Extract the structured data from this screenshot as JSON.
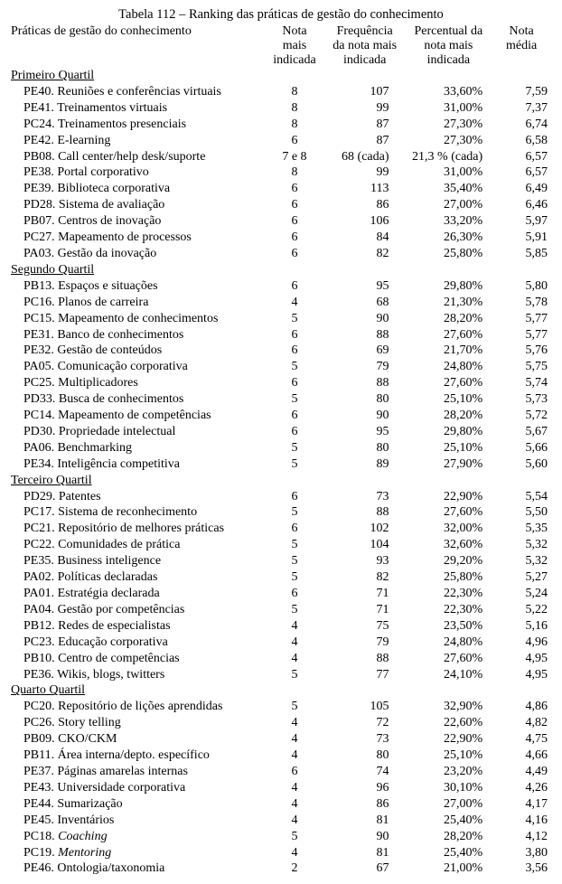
{
  "title": "Tabela 112 – Ranking das práticas de gestão do conhecimento",
  "columns": {
    "c1": "Práticas de gestão do conhecimento",
    "c2_l1": "Nota",
    "c2_l2": "mais",
    "c2_l3": "indicada",
    "c3_l1": "Frequência",
    "c3_l2": "da nota mais",
    "c3_l3": "indicada",
    "c4_l1": "Percentual da",
    "c4_l2": "nota mais",
    "c4_l3": "indicada",
    "c5_l1": "Nota",
    "c5_l2": "média"
  },
  "groups": [
    {
      "label": "Primeiro Quartil",
      "rows": [
        {
          "name": "PE40. Reuniões e conferências virtuais",
          "note": "8",
          "freq": "107",
          "perc": "33,60%",
          "media": "7,59"
        },
        {
          "name": "PE41. Treinamentos virtuais",
          "note": "8",
          "freq": "99",
          "perc": "31,00%",
          "media": "7,37"
        },
        {
          "name": "PC24. Treinamentos presenciais",
          "note": "8",
          "freq": "87",
          "perc": "27,30%",
          "media": "6,74"
        },
        {
          "name": "PE42. E-learning",
          "note": "6",
          "freq": "87",
          "perc": "27,30%",
          "media": "6,58"
        },
        {
          "name": "PB08. Call center/help desk/suporte",
          "note": "7 e 8",
          "freq": "68 (cada)",
          "perc": "21,3 % (cada)",
          "media": "6,57"
        },
        {
          "name": "PE38. Portal corporativo",
          "note": "8",
          "freq": "99",
          "perc": "31,00%",
          "media": "6,57"
        },
        {
          "name": "PE39. Biblioteca corporativa",
          "note": "6",
          "freq": "113",
          "perc": "35,40%",
          "media": "6,49"
        },
        {
          "name": "PD28. Sistema de avaliação",
          "note": "6",
          "freq": "86",
          "perc": "27,00%",
          "media": "6,46"
        },
        {
          "name": "PB07. Centros de inovação",
          "note": "6",
          "freq": "106",
          "perc": "33,20%",
          "media": "5,97"
        },
        {
          "name": "PC27. Mapeamento de processos",
          "note": "6",
          "freq": "84",
          "perc": "26,30%",
          "media": "5,91"
        },
        {
          "name": "PA03. Gestão da inovação",
          "note": "6",
          "freq": "82",
          "perc": "25,80%",
          "media": "5,85"
        }
      ]
    },
    {
      "label": "Segundo Quartil",
      "rows": [
        {
          "name": "PB13. Espaços e situações",
          "note": "6",
          "freq": "95",
          "perc": "29,80%",
          "media": "5,80"
        },
        {
          "name": "PC16. Planos de carreira",
          "note": "4",
          "freq": "68",
          "perc": "21,30%",
          "media": "5,78"
        },
        {
          "name": "PC15. Mapeamento de conhecimentos",
          "note": "5",
          "freq": "90",
          "perc": "28,20%",
          "media": "5,77"
        },
        {
          "name": "PE31. Banco de conhecimentos",
          "note": "6",
          "freq": "88",
          "perc": "27,60%",
          "media": "5,77"
        },
        {
          "name": "PE32. Gestão de conteúdos",
          "note": "6",
          "freq": "69",
          "perc": "21,70%",
          "media": "5,76"
        },
        {
          "name": "PA05. Comunicação corporativa",
          "note": "5",
          "freq": "79",
          "perc": "24,80%",
          "media": "5,75"
        },
        {
          "name": "PC25. Multiplicadores",
          "note": "6",
          "freq": "88",
          "perc": "27,60%",
          "media": "5,74"
        },
        {
          "name": "PD33. Busca de conhecimentos",
          "note": "5",
          "freq": "80",
          "perc": "25,10%",
          "media": "5,73"
        },
        {
          "name": "PC14. Mapeamento de competências",
          "note": "6",
          "freq": "90",
          "perc": "28,20%",
          "media": "5,72"
        },
        {
          "name": "PD30. Propriedade intelectual",
          "note": "6",
          "freq": "95",
          "perc": "29,80%",
          "media": "5,67"
        },
        {
          "name": "PA06. Benchmarking",
          "note": "5",
          "freq": "80",
          "perc": "25,10%",
          "media": "5,66"
        },
        {
          "name": "PE34. Inteligência competitiva",
          "note": "5",
          "freq": "89",
          "perc": "27,90%",
          "media": "5,60"
        }
      ]
    },
    {
      "label": "Terceiro Quartil",
      "rows": [
        {
          "name": "PD29. Patentes",
          "note": "6",
          "freq": "73",
          "perc": "22,90%",
          "media": "5,54"
        },
        {
          "name": "PC17. Sistema de reconhecimento",
          "note": "5",
          "freq": "88",
          "perc": "27,60%",
          "media": "5,50"
        },
        {
          "name": "PC21. Repositório de melhores práticas",
          "note": "6",
          "freq": "102",
          "perc": "32,00%",
          "media": "5,35"
        },
        {
          "name": "PC22. Comunidades de prática",
          "note": "5",
          "freq": "104",
          "perc": "32,60%",
          "media": "5,32"
        },
        {
          "name": "PE35. Business inteligence",
          "note": "5",
          "freq": "93",
          "perc": "29,20%",
          "media": "5,32"
        },
        {
          "name": "PA02. Políticas declaradas",
          "note": "5",
          "freq": "82",
          "perc": "25,80%",
          "media": "5,27"
        },
        {
          "name": "PA01. Estratégia declarada",
          "note": "6",
          "freq": "71",
          "perc": "22,30%",
          "media": "5,24"
        },
        {
          "name": "PA04. Gestão por competências",
          "note": "5",
          "freq": "71",
          "perc": "22,30%",
          "media": "5,22"
        },
        {
          "name": "PB12. Redes de especialistas",
          "note": "4",
          "freq": "75",
          "perc": "23,50%",
          "media": "5,16"
        },
        {
          "name": "PC23. Educação corporativa",
          "note": "4",
          "freq": "79",
          "perc": "24,80%",
          "media": "4,96"
        },
        {
          "name": "PB10. Centro de competências",
          "note": "4",
          "freq": "88",
          "perc": "27,60%",
          "media": "4,95"
        },
        {
          "name": "PE36. Wikis, blogs,  twitters",
          "note": "5",
          "freq": "77",
          "perc": "24,10%",
          "media": "4,95"
        }
      ]
    },
    {
      "label": "Quarto Quartil",
      "rows": [
        {
          "name": "PC20. Repositório de lições aprendidas",
          "note": "5",
          "freq": "105",
          "perc": "32,90%",
          "media": "4,86"
        },
        {
          "name": "PC26. Story telling",
          "note": "4",
          "freq": "72",
          "perc": "22,60%",
          "media": "4,82"
        },
        {
          "name": "PB09. CKO/CKM",
          "note": "4",
          "freq": "73",
          "perc": "22,90%",
          "media": "4,75"
        },
        {
          "name": "PB11. Área interna/depto. específico",
          "note": "4",
          "freq": "80",
          "perc": "25,10%",
          "media": "4,66"
        },
        {
          "name": "PE37. Páginas amarelas internas",
          "note": "6",
          "freq": "74",
          "perc": "23,20%",
          "media": "4,49"
        },
        {
          "name": "PE43. Universidade corporativa",
          "note": "4",
          "freq": "96",
          "perc": "30,10%",
          "media": "4,26"
        },
        {
          "name": "PE44. Sumarização",
          "note": "4",
          "freq": "86",
          "perc": "27,00%",
          "media": "4,17"
        },
        {
          "name": "PE45. Inventários",
          "note": "4",
          "freq": "81",
          "perc": "25,40%",
          "media": "4,16"
        },
        {
          "name": "PC18. <i>Coaching</i>",
          "note": "5",
          "freq": "90",
          "perc": "28,20%",
          "media": "4,12",
          "html": true
        },
        {
          "name": "PC19. <i>Mentoring</i>",
          "note": "4",
          "freq": "81",
          "perc": "25,40%",
          "media": "3,80",
          "html": true
        },
        {
          "name": "PE46. Ontologia/taxonomia",
          "note": "2",
          "freq": "67",
          "perc": "21,00%",
          "media": "3,56"
        }
      ]
    }
  ]
}
